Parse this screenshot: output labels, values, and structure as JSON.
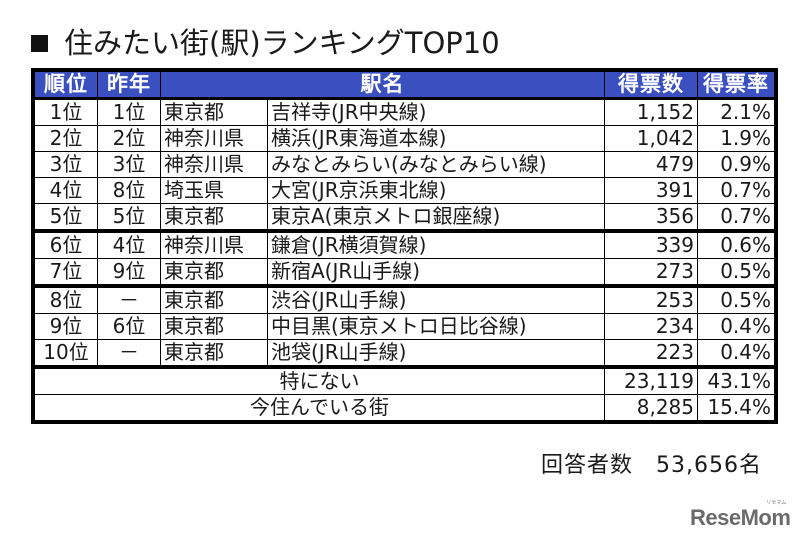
{
  "title": "住みたい街(駅)ランキングTOP10",
  "table": {
    "headers": {
      "rank": "順位",
      "prev_year": "昨年",
      "station_name": "駅名",
      "votes": "得票数",
      "rate": "得票率"
    },
    "rows": [
      {
        "rank": "1位",
        "prev": "1位",
        "pref": "東京都",
        "station": "吉祥寺(JR中央線)",
        "votes": "1,152",
        "rate": "2.1%"
      },
      {
        "rank": "2位",
        "prev": "2位",
        "pref": "神奈川県",
        "station": "横浜(JR東海道本線)",
        "votes": "1,042",
        "rate": "1.9%"
      },
      {
        "rank": "3位",
        "prev": "3位",
        "pref": "神奈川県",
        "station": "みなとみらい(みなとみらい線)",
        "votes": "479",
        "rate": "0.9%"
      },
      {
        "rank": "4位",
        "prev": "8位",
        "pref": "埼玉県",
        "station": "大宮(JR京浜東北線)",
        "votes": "391",
        "rate": "0.7%"
      },
      {
        "rank": "5位",
        "prev": "5位",
        "pref": "東京都",
        "station": "東京A(東京メトロ銀座線)",
        "votes": "356",
        "rate": "0.7%"
      },
      {
        "rank": "6位",
        "prev": "4位",
        "pref": "神奈川県",
        "station": "鎌倉(JR横須賀線)",
        "votes": "339",
        "rate": "0.6%"
      },
      {
        "rank": "7位",
        "prev": "9位",
        "pref": "東京都",
        "station": "新宿A(JR山手線)",
        "votes": "273",
        "rate": "0.5%"
      },
      {
        "rank": "8位",
        "prev": "－",
        "pref": "東京都",
        "station": "渋谷(JR山手線)",
        "votes": "253",
        "rate": "0.5%"
      },
      {
        "rank": "9位",
        "prev": "6位",
        "pref": "東京都",
        "station": "中目黒(東京メトロ日比谷線)",
        "votes": "234",
        "rate": "0.4%"
      },
      {
        "rank": "10位",
        "prev": "－",
        "pref": "東京都",
        "station": "池袋(JR山手線)",
        "votes": "223",
        "rate": "0.4%"
      }
    ],
    "summary_rows": [
      {
        "label": "特にない",
        "votes": "23,119",
        "rate": "43.1%"
      },
      {
        "label": "今住んでいる街",
        "votes": "8,285",
        "rate": "15.4%"
      }
    ]
  },
  "footer": {
    "respondents": "回答者数　53,656名"
  },
  "logo": {
    "text": "ReseMom",
    "ruby": "リセマム"
  },
  "colors": {
    "header_bg": "#3a4fc0",
    "header_text": "#ffffff",
    "border": "#000000"
  }
}
